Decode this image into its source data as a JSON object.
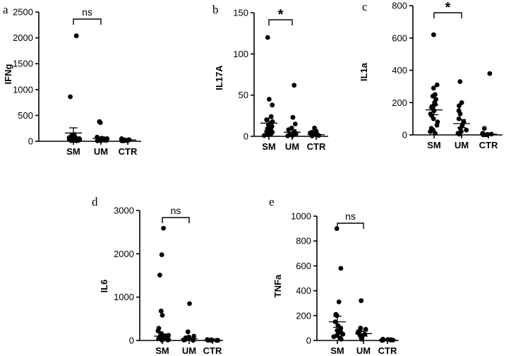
{
  "chart_data": [
    {
      "type": "scatter",
      "panel": "a",
      "ylabel": "IFNg",
      "categories": [
        "SM",
        "UM",
        "CTR"
      ],
      "yticks": [
        "0",
        "500",
        "1000",
        "1500",
        "2000",
        "2500"
      ],
      "ylim": [
        0,
        2500
      ],
      "significance": {
        "label": "ns",
        "from": "SM",
        "to": "UM"
      },
      "series": [
        {
          "category": "SM",
          "values": [
            2040,
            860,
            130,
            110,
            95,
            80,
            70,
            60,
            55,
            50,
            45,
            40,
            35,
            30,
            25,
            20,
            18,
            15,
            12,
            10
          ],
          "mean": 160,
          "sem": 100
        },
        {
          "category": "UM",
          "values": [
            380,
            360,
            80,
            60,
            50,
            40,
            30,
            25,
            20,
            15,
            12,
            10
          ],
          "mean": 55,
          "sem": 30
        },
        {
          "category": "CTR",
          "values": [
            50,
            40,
            35,
            30,
            25,
            20,
            18,
            15,
            12,
            10,
            8
          ],
          "mean": 25,
          "sem": 5
        }
      ]
    },
    {
      "type": "scatter",
      "panel": "b",
      "ylabel": "IL17A",
      "categories": [
        "SM",
        "UM",
        "CTR"
      ],
      "yticks": [
        "0",
        "50",
        "100",
        "150"
      ],
      "ylim": [
        0,
        150
      ],
      "significance": {
        "label": "*",
        "from": "SM",
        "to": "UM"
      },
      "series": [
        {
          "category": "SM",
          "values": [
            120,
            45,
            38,
            24,
            20,
            18,
            16,
            14,
            12,
            10,
            8,
            6,
            5,
            4,
            3,
            2,
            1
          ],
          "mean": 16,
          "sem": 6
        },
        {
          "category": "UM",
          "values": [
            62,
            23,
            15,
            10,
            8,
            5,
            3,
            2,
            1,
            0.5
          ],
          "mean": 5,
          "sem": 3
        },
        {
          "category": "CTR",
          "values": [
            10,
            6,
            5,
            4,
            3,
            2,
            1,
            1,
            0.5
          ],
          "mean": 2,
          "sem": 1
        }
      ]
    },
    {
      "type": "scatter",
      "panel": "c",
      "ylabel": "IL1a",
      "categories": [
        "SM",
        "UM",
        "CTR"
      ],
      "yticks": [
        "0",
        "200",
        "400",
        "600",
        "800"
      ],
      "ylim": [
        0,
        800
      ],
      "significance": {
        "label": "*",
        "from": "SM",
        "to": "UM"
      },
      "series": [
        {
          "category": "SM",
          "values": [
            620,
            310,
            290,
            250,
            240,
            220,
            200,
            190,
            180,
            170,
            160,
            150,
            130,
            120,
            100,
            80,
            60,
            40,
            30,
            20,
            10
          ],
          "mean": 155,
          "sem": 30
        },
        {
          "category": "UM",
          "values": [
            330,
            200,
            180,
            150,
            130,
            100,
            80,
            60,
            40,
            30,
            20,
            10,
            5
          ],
          "mean": 70,
          "sem": 25
        },
        {
          "category": "CTR",
          "values": [
            380,
            40,
            10,
            5,
            3,
            2,
            1,
            1,
            0.5
          ],
          "mean": 5,
          "sem": 2
        }
      ]
    },
    {
      "type": "scatter",
      "panel": "d",
      "ylabel": "IL6",
      "categories": [
        "SM",
        "UM",
        "CTR"
      ],
      "yticks": [
        "0",
        "1000",
        "2000",
        "3000"
      ],
      "ylim": [
        0,
        3000
      ],
      "significance": {
        "label": "ns",
        "from": "SM",
        "to": "UM"
      },
      "series": [
        {
          "category": "SM",
          "values": [
            2590,
            1980,
            1510,
            680,
            580,
            280,
            220,
            160,
            120,
            100,
            80,
            60,
            40,
            30,
            20,
            10,
            5
          ],
          "mean": 100,
          "sem": 50
        },
        {
          "category": "UM",
          "values": [
            850,
            200,
            100,
            80,
            60,
            40,
            30,
            20,
            10,
            5
          ],
          "mean": 40,
          "sem": 20
        },
        {
          "category": "CTR",
          "values": [
            20,
            15,
            10,
            8,
            5,
            3,
            2,
            1
          ],
          "mean": 5,
          "sem": 2
        }
      ]
    },
    {
      "type": "scatter",
      "panel": "e",
      "ylabel": "TNFa",
      "categories": [
        "SM",
        "UM",
        "CTR"
      ],
      "yticks": [
        "0",
        "200",
        "400",
        "600",
        "800",
        "1000"
      ],
      "ylim": [
        0,
        1000
      ],
      "significance": {
        "label": "ns",
        "from": "SM",
        "to": "UM"
      },
      "series": [
        {
          "category": "SM",
          "values": [
            900,
            580,
            310,
            210,
            200,
            150,
            120,
            100,
            90,
            80,
            70,
            60,
            50,
            40,
            30,
            20,
            10
          ],
          "mean": 150,
          "sem": 45
        },
        {
          "category": "UM",
          "values": [
            320,
            100,
            90,
            80,
            70,
            60,
            50,
            40,
            30,
            20,
            10
          ],
          "mean": 55,
          "sem": 20
        },
        {
          "category": "CTR",
          "values": [
            10,
            8,
            6,
            5,
            4,
            3,
            2,
            1
          ],
          "mean": 5,
          "sem": 1
        }
      ]
    }
  ]
}
